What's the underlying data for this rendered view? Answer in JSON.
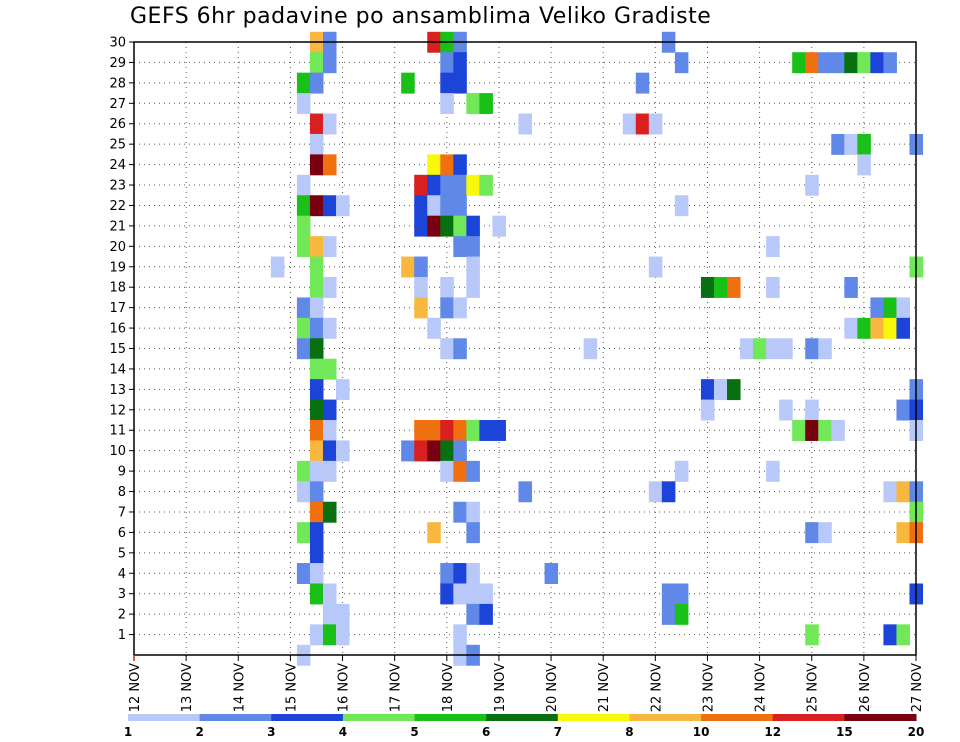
{
  "chart_data": {
    "type": "heatmap",
    "title": "GEFS 6hr padavine po ansamblima Veliko Gradiste",
    "x_ticks": [
      "12 NOV",
      "13 NOV",
      "14 NOV",
      "15 NOV",
      "16 NOV",
      "17 NOV",
      "18 NOV",
      "19 NOV",
      "20 NOV",
      "21 NOV",
      "22 NOV",
      "23 NOV",
      "24 NOV",
      "25 NOV",
      "26 NOV",
      "27 NOV"
    ],
    "x_unit": "6-hour steps from 12 NOV 00z",
    "x_range": [
      0,
      60
    ],
    "y_ticks": [
      1,
      2,
      3,
      4,
      5,
      6,
      7,
      8,
      9,
      10,
      11,
      12,
      13,
      14,
      15,
      16,
      17,
      18,
      19,
      20,
      21,
      22,
      23,
      24,
      25,
      26,
      27,
      28,
      29,
      30
    ],
    "y_range": [
      0,
      30
    ],
    "grid": "dotted",
    "colorbar": {
      "labels": [
        "1",
        "2",
        "3",
        "4",
        "5",
        "6",
        "7",
        "8",
        "10",
        "12",
        "15",
        "20"
      ],
      "colors": [
        "#b8c8f8",
        "#6088e8",
        "#1c44d8",
        "#70e858",
        "#18c018",
        "#087010",
        "#f8f808",
        "#f8b840",
        "#f07010",
        "#d82020",
        "#780010"
      ]
    },
    "cells": [
      [
        14,
        30,
        7
      ],
      [
        15,
        30,
        1
      ],
      [
        23,
        30,
        9
      ],
      [
        24,
        30,
        4
      ],
      [
        25,
        30,
        1
      ],
      [
        41,
        30,
        1
      ],
      [
        14,
        29,
        3
      ],
      [
        15,
        29,
        1
      ],
      [
        24,
        29,
        1
      ],
      [
        25,
        29,
        2
      ],
      [
        42,
        29,
        1
      ],
      [
        51,
        29,
        4
      ],
      [
        52,
        29,
        8
      ],
      [
        53,
        29,
        1
      ],
      [
        54,
        29,
        1
      ],
      [
        55,
        29,
        5
      ],
      [
        56,
        29,
        3
      ],
      [
        57,
        29,
        2
      ],
      [
        58,
        29,
        1
      ],
      [
        13,
        28,
        4
      ],
      [
        14,
        28,
        1
      ],
      [
        21,
        28,
        4
      ],
      [
        24,
        28,
        2
      ],
      [
        25,
        28,
        2
      ],
      [
        39,
        28,
        1
      ],
      [
        13,
        27,
        0
      ],
      [
        24,
        27,
        0
      ],
      [
        26,
        27,
        3
      ],
      [
        27,
        27,
        4
      ],
      [
        14,
        26,
        9
      ],
      [
        15,
        26,
        0
      ],
      [
        30,
        26,
        0
      ],
      [
        38,
        26,
        0
      ],
      [
        39,
        26,
        9
      ],
      [
        40,
        26,
        0
      ],
      [
        14,
        25,
        0
      ],
      [
        54,
        25,
        1
      ],
      [
        55,
        25,
        0
      ],
      [
        56,
        25,
        4
      ],
      [
        60,
        25,
        1
      ],
      [
        14,
        24,
        10
      ],
      [
        15,
        24,
        8
      ],
      [
        23,
        24,
        6
      ],
      [
        24,
        24,
        8
      ],
      [
        25,
        24,
        2
      ],
      [
        56,
        24,
        0
      ],
      [
        13,
        23,
        0
      ],
      [
        22,
        23,
        9
      ],
      [
        23,
        23,
        2
      ],
      [
        24,
        23,
        1
      ],
      [
        25,
        23,
        1
      ],
      [
        26,
        23,
        6
      ],
      [
        27,
        23,
        3
      ],
      [
        52,
        23,
        0
      ],
      [
        13,
        22,
        4
      ],
      [
        14,
        22,
        10
      ],
      [
        15,
        22,
        2
      ],
      [
        16,
        22,
        0
      ],
      [
        22,
        22,
        2
      ],
      [
        23,
        22,
        0
      ],
      [
        24,
        22,
        1
      ],
      [
        25,
        22,
        1
      ],
      [
        42,
        22,
        0
      ],
      [
        13,
        21,
        3
      ],
      [
        22,
        21,
        2
      ],
      [
        23,
        21,
        10
      ],
      [
        24,
        21,
        5
      ],
      [
        25,
        21,
        3
      ],
      [
        26,
        21,
        2
      ],
      [
        28,
        21,
        0
      ],
      [
        13,
        20,
        3
      ],
      [
        14,
        20,
        7
      ],
      [
        15,
        20,
        0
      ],
      [
        25,
        20,
        1
      ],
      [
        26,
        20,
        1
      ],
      [
        49,
        20,
        0
      ],
      [
        11,
        19,
        0
      ],
      [
        14,
        19,
        3
      ],
      [
        21,
        19,
        7
      ],
      [
        22,
        19,
        1
      ],
      [
        26,
        19,
        0
      ],
      [
        40,
        19,
        0
      ],
      [
        60,
        19,
        3
      ],
      [
        14,
        18,
        3
      ],
      [
        15,
        18,
        0
      ],
      [
        22,
        18,
        0
      ],
      [
        24,
        18,
        0
      ],
      [
        26,
        18,
        0
      ],
      [
        44,
        18,
        5
      ],
      [
        45,
        18,
        4
      ],
      [
        46,
        18,
        8
      ],
      [
        49,
        18,
        0
      ],
      [
        55,
        18,
        1
      ],
      [
        13,
        17,
        1
      ],
      [
        14,
        17,
        0
      ],
      [
        22,
        17,
        7
      ],
      [
        24,
        17,
        1
      ],
      [
        25,
        17,
        0
      ],
      [
        57,
        17,
        1
      ],
      [
        58,
        17,
        4
      ],
      [
        59,
        17,
        0
      ],
      [
        13,
        16,
        3
      ],
      [
        14,
        16,
        1
      ],
      [
        15,
        16,
        0
      ],
      [
        23,
        16,
        0
      ],
      [
        55,
        16,
        0
      ],
      [
        56,
        16,
        4
      ],
      [
        57,
        16,
        7
      ],
      [
        58,
        16,
        6
      ],
      [
        59,
        16,
        2
      ],
      [
        13,
        15,
        1
      ],
      [
        14,
        15,
        5
      ],
      [
        24,
        15,
        0
      ],
      [
        25,
        15,
        1
      ],
      [
        35,
        15,
        0
      ],
      [
        47,
        15,
        0
      ],
      [
        48,
        15,
        3
      ],
      [
        49,
        15,
        0
      ],
      [
        50,
        15,
        0
      ],
      [
        52,
        15,
        1
      ],
      [
        53,
        15,
        0
      ],
      [
        14,
        14,
        3
      ],
      [
        15,
        14,
        3
      ],
      [
        14,
        13,
        2
      ],
      [
        16,
        13,
        0
      ],
      [
        44,
        13,
        2
      ],
      [
        45,
        13,
        0
      ],
      [
        46,
        13,
        5
      ],
      [
        60,
        13,
        1
      ],
      [
        14,
        12,
        5
      ],
      [
        15,
        12,
        2
      ],
      [
        44,
        12,
        0
      ],
      [
        50,
        12,
        0
      ],
      [
        52,
        12,
        0
      ],
      [
        59,
        12,
        1
      ],
      [
        60,
        12,
        2
      ],
      [
        14,
        11,
        8
      ],
      [
        15,
        11,
        0
      ],
      [
        22,
        11,
        8
      ],
      [
        23,
        11,
        8
      ],
      [
        24,
        11,
        9
      ],
      [
        25,
        11,
        8
      ],
      [
        26,
        11,
        3
      ],
      [
        27,
        11,
        2
      ],
      [
        28,
        11,
        2
      ],
      [
        51,
        11,
        3
      ],
      [
        52,
        11,
        10
      ],
      [
        53,
        11,
        3
      ],
      [
        54,
        11,
        0
      ],
      [
        60,
        11,
        0
      ],
      [
        14,
        10,
        7
      ],
      [
        15,
        10,
        2
      ],
      [
        16,
        10,
        0
      ],
      [
        21,
        10,
        1
      ],
      [
        22,
        10,
        9
      ],
      [
        23,
        10,
        10
      ],
      [
        24,
        10,
        5
      ],
      [
        25,
        10,
        1
      ],
      [
        13,
        9,
        3
      ],
      [
        14,
        9,
        0
      ],
      [
        15,
        9,
        0
      ],
      [
        24,
        9,
        0
      ],
      [
        25,
        9,
        8
      ],
      [
        26,
        9,
        1
      ],
      [
        42,
        9,
        0
      ],
      [
        49,
        9,
        0
      ],
      [
        13,
        8,
        0
      ],
      [
        14,
        8,
        1
      ],
      [
        30,
        8,
        1
      ],
      [
        40,
        8,
        0
      ],
      [
        41,
        8,
        2
      ],
      [
        58,
        8,
        0
      ],
      [
        59,
        8,
        7
      ],
      [
        60,
        8,
        1
      ],
      [
        14,
        7,
        8
      ],
      [
        15,
        7,
        5
      ],
      [
        25,
        7,
        1
      ],
      [
        26,
        7,
        0
      ],
      [
        60,
        7,
        3
      ],
      [
        13,
        6,
        3
      ],
      [
        14,
        6,
        2
      ],
      [
        23,
        6,
        7
      ],
      [
        26,
        6,
        1
      ],
      [
        52,
        6,
        1
      ],
      [
        53,
        6,
        0
      ],
      [
        59,
        6,
        7
      ],
      [
        60,
        6,
        8
      ],
      [
        14,
        5,
        2
      ],
      [
        13,
        4,
        1
      ],
      [
        14,
        4,
        0
      ],
      [
        24,
        4,
        1
      ],
      [
        25,
        4,
        2
      ],
      [
        26,
        4,
        0
      ],
      [
        32,
        4,
        1
      ],
      [
        14,
        3,
        4
      ],
      [
        15,
        3,
        0
      ],
      [
        24,
        3,
        2
      ],
      [
        25,
        3,
        0
      ],
      [
        26,
        3,
        0
      ],
      [
        27,
        3,
        0
      ],
      [
        41,
        3,
        1
      ],
      [
        42,
        3,
        1
      ],
      [
        60,
        3,
        2
      ],
      [
        15,
        2,
        0
      ],
      [
        16,
        2,
        0
      ],
      [
        26,
        2,
        1
      ],
      [
        27,
        2,
        2
      ],
      [
        41,
        2,
        1
      ],
      [
        42,
        2,
        4
      ],
      [
        14,
        1,
        0
      ],
      [
        15,
        1,
        4
      ],
      [
        16,
        1,
        0
      ],
      [
        25,
        1,
        0
      ],
      [
        52,
        1,
        3
      ],
      [
        58,
        1,
        2
      ],
      [
        59,
        1,
        3
      ],
      [
        13,
        0,
        0
      ],
      [
        25,
        0,
        0
      ],
      [
        26,
        0,
        1
      ]
    ]
  }
}
